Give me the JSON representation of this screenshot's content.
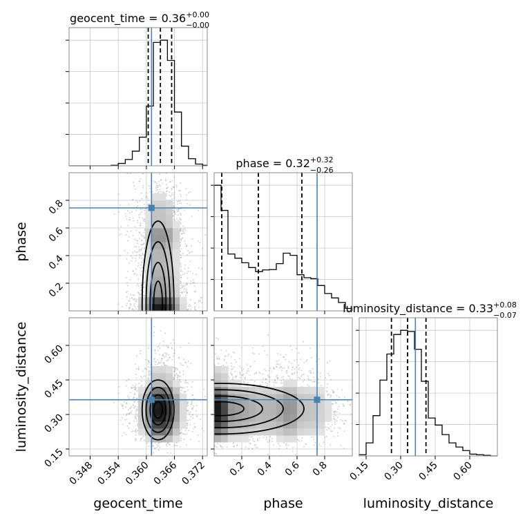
{
  "chart_data": {
    "type": "corner",
    "colors": {
      "truth": "#4682b4",
      "hist": "#000000",
      "grid": "#c8c8c8",
      "scatter": "#9a9a9a"
    },
    "parameters": [
      {
        "name": "geocent_time",
        "label": "geocent_time",
        "range": [
          0.3435,
          0.373
        ],
        "ticks": [
          0.348,
          0.354,
          0.36,
          0.366,
          0.372
        ],
        "tick_labels": [
          "0.348",
          "0.354",
          "0.360",
          "0.366",
          "0.372"
        ],
        "truth": 0.3611,
        "quantiles": [
          0.3604,
          0.363,
          0.3654
        ],
        "title": {
          "main": "geocent_time = 0.36",
          "plus": "+0.00",
          "minus": "−0.00"
        },
        "hist": {
          "edges": [
            0.3435,
            0.345,
            0.3465,
            0.348,
            0.3495,
            0.351,
            0.3525,
            0.354,
            0.3555,
            0.357,
            0.3585,
            0.36,
            0.3615,
            0.363,
            0.3645,
            0.366,
            0.3675,
            0.369,
            0.3705,
            0.372,
            0.373
          ],
          "values": [
            0,
            0,
            0,
            0,
            0,
            0,
            0.3,
            1.5,
            4.0,
            9.3,
            18.2,
            38.0,
            78.5,
            79.9,
            67.0,
            34.2,
            12.5,
            4.5,
            1.1,
            0.3
          ]
        }
      },
      {
        "name": "phase",
        "label": "phase",
        "range": [
          0.0,
          1.0
        ],
        "ticks": [
          0.2,
          0.4,
          0.6,
          0.8
        ],
        "tick_labels": [
          "0.2",
          "0.4",
          "0.6",
          "0.8"
        ],
        "truth": 0.745,
        "quantiles": [
          0.055,
          0.32,
          0.635
        ],
        "title": {
          "main": "phase = 0.32",
          "plus": "+0.32",
          "minus": "−0.26"
        },
        "hist": {
          "edges": [
            0,
            0.05,
            0.1,
            0.15,
            0.2,
            0.25,
            0.3,
            0.35,
            0.4,
            0.45,
            0.5,
            0.55,
            0.6,
            0.65,
            0.7,
            0.75,
            0.8,
            0.85,
            0.9,
            0.95,
            1.0
          ],
          "values": [
            10.5,
            8.4,
            4.75,
            4.4,
            4.02,
            3.62,
            3.28,
            3.42,
            3.45,
            3.95,
            4.82,
            4.64,
            3.02,
            2.77,
            2.69,
            2.12,
            1.45,
            1.08,
            0.7,
            0.2
          ]
        }
      },
      {
        "name": "luminosity_distance",
        "label": "luminosity_distance",
        "range": [
          0.12,
          0.72
        ],
        "ticks": [
          0.15,
          0.3,
          0.45,
          0.6
        ],
        "tick_labels": [
          "0.15",
          "0.30",
          "0.45",
          "0.60"
        ],
        "truth": 0.364,
        "quantiles": [
          0.26,
          0.33,
          0.41
        ],
        "title": {
          "main": "luminosity_distance = 0.33",
          "plus": "+0.08",
          "minus": "−0.07"
        },
        "hist": {
          "edges": [
            0.12,
            0.15,
            0.18,
            0.21,
            0.24,
            0.27,
            0.3,
            0.33,
            0.36,
            0.39,
            0.42,
            0.45,
            0.48,
            0.51,
            0.54,
            0.57,
            0.6,
            0.63,
            0.66,
            0.69,
            0.72
          ],
          "values": [
            0.2,
            2.2,
            6.8,
            12.8,
            17.2,
            20.5,
            21.2,
            21.0,
            18.0,
            12.6,
            6.4,
            5.2,
            3.6,
            2.2,
            1.5,
            0.9,
            0.3,
            0.2,
            0.1,
            0
          ]
        }
      }
    ],
    "pairs": [
      {
        "x": "geocent_time",
        "y": "phase",
        "center": [
          0.3625,
          0.05
        ],
        "spread": [
          0.0017,
          0.3
        ]
      },
      {
        "x": "geocent_time",
        "y": "luminosity_distance",
        "center": [
          0.3625,
          0.32
        ],
        "spread": [
          0.0017,
          0.065
        ]
      },
      {
        "x": "phase",
        "y": "luminosity_distance",
        "center": [
          0.05,
          0.325
        ],
        "spread": [
          0.3,
          0.055
        ]
      }
    ]
  }
}
